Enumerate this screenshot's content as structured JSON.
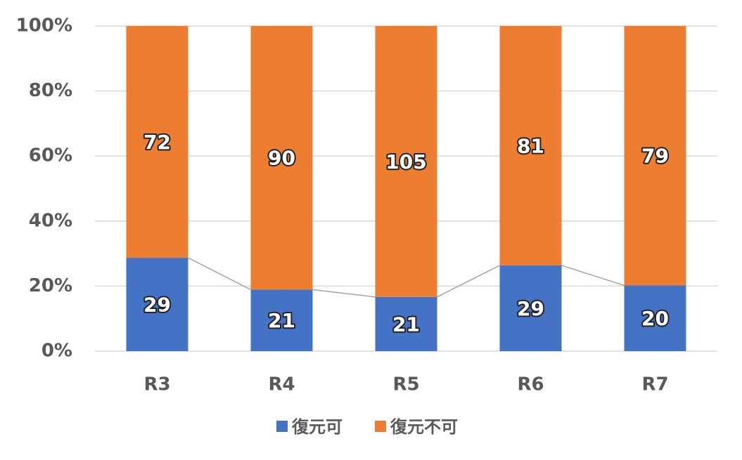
{
  "chart_data": {
    "type": "bar",
    "stacking": "percent",
    "series_lines": true,
    "categories": [
      "R3",
      "R4",
      "R5",
      "R6",
      "R7"
    ],
    "series": [
      {
        "name": "復元可",
        "color": "#4472c4",
        "values": [
          29,
          21,
          21,
          29,
          20
        ]
      },
      {
        "name": "復元不可",
        "color": "#ed7d31",
        "values": [
          72,
          90,
          105,
          81,
          79
        ]
      }
    ],
    "ylim": [
      0,
      100
    ],
    "yticks": [
      {
        "value": 0,
        "label": "0%"
      },
      {
        "value": 20,
        "label": "20%"
      },
      {
        "value": 40,
        "label": "40%"
      },
      {
        "value": 60,
        "label": "60%"
      },
      {
        "value": 80,
        "label": "80%"
      },
      {
        "value": 100,
        "label": "100%"
      }
    ],
    "grid": true,
    "legend": "bottom"
  }
}
